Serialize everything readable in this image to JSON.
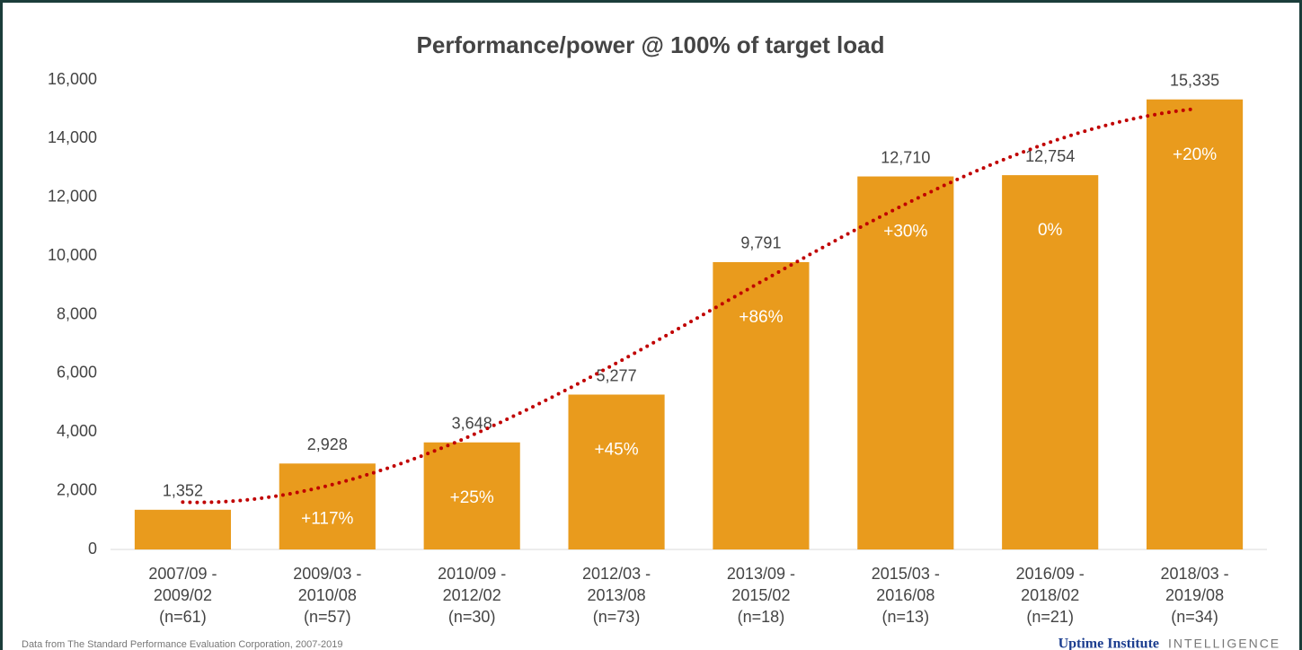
{
  "chart_data": {
    "type": "bar",
    "title": "Performance/power @ 100% of target load",
    "categories": [
      [
        "2007/09 -",
        "2009/02",
        "(n=61)"
      ],
      [
        "2009/03 -",
        "2010/08",
        "(n=57)"
      ],
      [
        "2010/09 -",
        "2012/02",
        "(n=30)"
      ],
      [
        "2012/03 -",
        "2013/08",
        "(n=73)"
      ],
      [
        "2013/09 -",
        "2015/02",
        "(n=18)"
      ],
      [
        "2015/03 -",
        "2016/08",
        "(n=13)"
      ],
      [
        "2016/09 -",
        "2018/02",
        "(n=21)"
      ],
      [
        "2018/03 -",
        "2019/08",
        "(n=34)"
      ]
    ],
    "values": [
      1352,
      2928,
      3648,
      5277,
      9791,
      12710,
      12754,
      15335
    ],
    "value_labels": [
      "1,352",
      "2,928",
      "3,648",
      "5,277",
      "9,791",
      "12,710",
      "12,754",
      "15,335"
    ],
    "change_labels": [
      null,
      "+117%",
      "+25%",
      "+45%",
      "+86%",
      "+30%",
      "0%",
      "+20%"
    ],
    "color": "#e99b1d",
    "trendline": {
      "type": "polynomial",
      "order": 3,
      "color": "#c00000"
    },
    "ylim": [
      0,
      16000
    ],
    "yticks": [
      0,
      {
        "value": 2000,
        "label": "2,000"
      },
      {
        "value": 4000,
        "label": "4,000"
      },
      {
        "value": 6000,
        "label": "6,000"
      },
      {
        "value": 8000,
        "label": "8,000"
      },
      {
        "value": 10000,
        "label": "10,000"
      },
      {
        "value": 12000,
        "label": "12,000"
      },
      {
        "value": 14000,
        "label": "14,000"
      },
      {
        "value": 16000,
        "label": "16,000"
      }
    ],
    "grid": false,
    "source": "Data from The Standard Performance Evaluation Corporation, 2007-2019",
    "brand": "Uptime Institute",
    "brand_tag": "INTELLIGENCE"
  }
}
